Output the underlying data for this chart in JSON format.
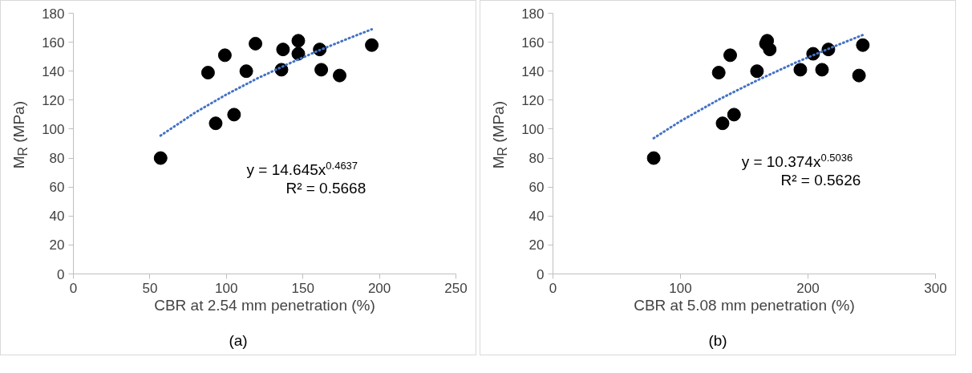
{
  "chart_data": [
    {
      "type": "scatter",
      "xlabel": "CBR at 2.54 mm penetration (%)",
      "ylabel": "M$_{R}$ (MPa)",
      "xlim": [
        0,
        250
      ],
      "xticks": [
        0,
        50,
        100,
        150,
        200,
        250
      ],
      "ylim": [
        0,
        180
      ],
      "yticks": [
        0,
        20,
        40,
        60,
        80,
        100,
        120,
        140,
        160,
        180
      ],
      "grid": false,
      "annotations": [
        "y = 14.645x$^{0.4637}$",
        "R² = 0.5668",
        "(a)"
      ],
      "series": [
        {
          "type": "scatter",
          "marker": "circle",
          "color": "#000000",
          "x": [
            57,
            88,
            93,
            99,
            105,
            113,
            119,
            136,
            137,
            147,
            147,
            161,
            162,
            174,
            195
          ],
          "values": [
            80,
            139,
            104,
            151,
            110,
            140,
            159,
            141,
            155,
            161,
            152,
            155,
            141,
            137,
            158
          ]
        },
        {
          "type": "line",
          "line_style": "dotted",
          "marker": "none",
          "color": "#4472c4",
          "x": [
            57,
            80,
            100,
            120,
            140,
            160,
            180,
            195
          ],
          "values": [
            95.5,
            111.7,
            123.9,
            134.9,
            144.8,
            154.1,
            162.7,
            168.9
          ]
        }
      ]
    },
    {
      "type": "scatter",
      "xlabel": "CBR at 5.08 mm penetration (%)",
      "ylabel": "M$_{R}$ (MPa)",
      "xlim": [
        0,
        300
      ],
      "xticks": [
        0,
        100,
        200,
        300
      ],
      "ylim": [
        0,
        180
      ],
      "yticks": [
        0,
        20,
        40,
        60,
        80,
        100,
        120,
        140,
        160,
        180
      ],
      "grid": false,
      "annotations": [
        "y = 10.374x$^{0.5036}$",
        "R² = 0.5626",
        "(b)"
      ],
      "series": [
        {
          "type": "scatter",
          "marker": "circle",
          "color": "#000000",
          "x": [
            79,
            130,
            133,
            139,
            142,
            160,
            168,
            167,
            170,
            194,
            204,
            211,
            216,
            240,
            243
          ],
          "values": [
            80,
            139,
            104,
            151,
            110,
            140,
            161,
            159,
            155,
            141,
            152,
            141,
            155,
            137,
            158
          ]
        },
        {
          "type": "line",
          "line_style": "dotted",
          "marker": "none",
          "color": "#4472c4",
          "x": [
            79,
            100,
            130,
            160,
            190,
            220,
            243
          ],
          "values": [
            93.7,
            105.5,
            120.4,
            133.6,
            145.8,
            156.9,
            165.0
          ]
        }
      ]
    }
  ]
}
